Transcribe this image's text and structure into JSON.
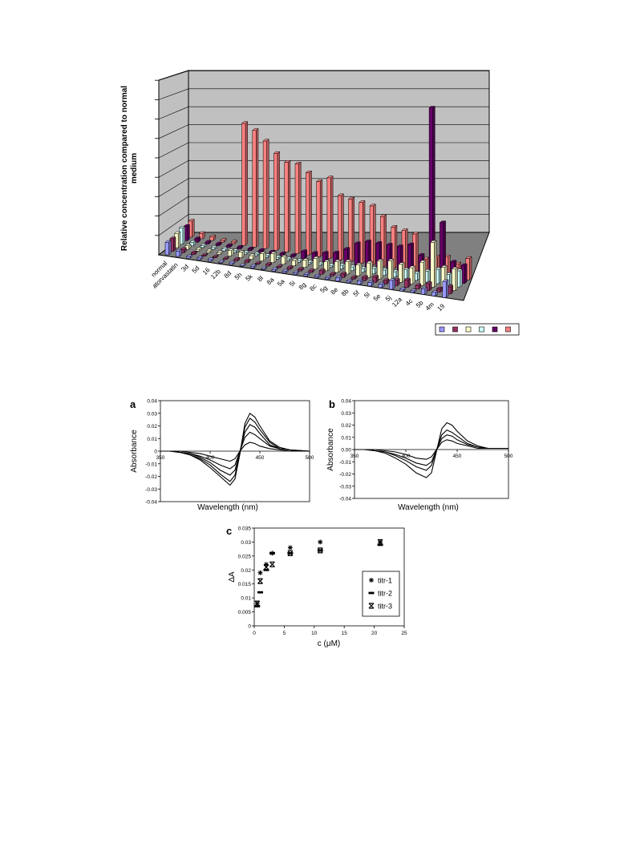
{
  "chart_data": [
    {
      "type": "bar",
      "variant": "3d-clustered",
      "title": "",
      "ylabel": "Relative concentration compared to normal medium",
      "ylabel_lines": [
        "Relative concentration compared to normal",
        "medium"
      ],
      "xlabel": "",
      "grid": true,
      "legend_position": "bottom-right",
      "categories": [
        "normal",
        "atorvastatin",
        "3d",
        "5d",
        "16",
        "12b",
        "8d",
        "5h",
        "5k",
        "8l",
        "8a",
        "5a",
        "5i",
        "8g",
        "8c",
        "5g",
        "8e",
        "8b",
        "5f",
        "5l",
        "5e",
        "5j",
        "12a",
        "4c",
        "5b",
        "4m",
        "19"
      ],
      "series": [
        {
          "color": "#9999ff",
          "values": [
            0.7,
            0.3,
            0.1,
            0.1,
            0.1,
            0.05,
            0.1,
            0.05,
            0.1,
            0.05,
            0.1,
            0.1,
            0.1,
            0.1,
            0.1,
            0.1,
            0.2,
            0.1,
            0.2,
            0.2,
            0.2,
            0.5,
            0.1,
            0.1,
            0.3,
            0.2,
            0.9
          ]
        },
        {
          "color": "#993366",
          "values": [
            0.7,
            0.2,
            0.1,
            0.05,
            0.05,
            0.05,
            0.1,
            0.1,
            0.05,
            0.1,
            0.05,
            0.1,
            0.1,
            0.1,
            0.2,
            0.1,
            0.2,
            0.1,
            0.2,
            0.3,
            0.2,
            0.3,
            0.4,
            0.2,
            0.4,
            0.2,
            0.4
          ]
        },
        {
          "color": "#ffffcc",
          "values": [
            0.8,
            0.2,
            0.1,
            0.1,
            0.1,
            0.3,
            0.3,
            0.2,
            0.4,
            0.5,
            0.4,
            0.3,
            0.4,
            0.6,
            0.5,
            0.6,
            0.7,
            0.6,
            0.8,
            1.0,
            1.1,
            1.0,
            0.9,
            1.3,
            2.5,
            1.2,
            1.2
          ]
        },
        {
          "color": "#ccffff",
          "values": [
            0.9,
            0.2,
            0.1,
            0.1,
            0.1,
            0.1,
            0.1,
            0.1,
            0.1,
            0.1,
            0.1,
            0.1,
            0.1,
            0.1,
            0.1,
            0.2,
            0.2,
            0.2,
            0.3,
            0.3,
            0.3,
            0.5,
            0.4,
            0.6,
            0.8,
            0.6,
            0.9
          ]
        },
        {
          "color": "#660066",
          "values": [
            0.8,
            0.2,
            0.1,
            0.1,
            0.1,
            0.1,
            0.1,
            0.1,
            0.1,
            0.1,
            0.1,
            0.4,
            0.4,
            0.5,
            0.6,
            0.9,
            1.3,
            1.5,
            1.5,
            1.5,
            1.5,
            1.7,
            1.2,
            9.5,
            3.2,
            1.1,
            1.0
          ]
        },
        {
          "color": "#ff8080",
          "values": [
            0.9,
            0.3,
            0.2,
            0.1,
            0.1,
            6.8,
            6.5,
            6.0,
            5.4,
            5.0,
            5.0,
            4.6,
            4.2,
            4.5,
            3.6,
            3.5,
            3.4,
            3.3,
            2.8,
            2.3,
            2.2,
            2.1,
            0.8,
            1.0,
            1.1,
            0.8,
            1.2
          ]
        }
      ]
    },
    {
      "type": "line",
      "panel": "a",
      "xlabel": "Wavelength (nm)",
      "ylabel": "Absorbance",
      "xlim": [
        350,
        500
      ],
      "ylim": [
        -0.04,
        0.04
      ],
      "xticks": [
        "350",
        "400",
        "450",
        "500"
      ],
      "yticks": [
        "0.04",
        "0.03",
        "0.02",
        "0.01",
        "0",
        "-0.01",
        "-0.02",
        "-0.03",
        "-0.04"
      ],
      "color": "#000000",
      "x": [
        350,
        360,
        370,
        380,
        390,
        400,
        410,
        420,
        425,
        430,
        435,
        440,
        445,
        450,
        460,
        470,
        480,
        490,
        500
      ],
      "series": [
        {
          "values": [
            0,
            0,
            -0.001,
            -0.003,
            -0.007,
            -0.013,
            -0.02,
            -0.027,
            -0.022,
            -0.002,
            0.022,
            0.03,
            0.027,
            0.02,
            0.008,
            0.003,
            0.001,
            0.0005,
            0
          ]
        },
        {
          "values": [
            0,
            0,
            -0.001,
            -0.003,
            -0.006,
            -0.011,
            -0.018,
            -0.024,
            -0.019,
            -0.001,
            0.019,
            0.026,
            0.023,
            0.017,
            0.007,
            0.002,
            0.001,
            0.0005,
            0
          ]
        },
        {
          "values": [
            0,
            0,
            -0.001,
            -0.002,
            -0.005,
            -0.009,
            -0.015,
            -0.019,
            -0.015,
            0,
            0.015,
            0.021,
            0.019,
            0.014,
            0.005,
            0.002,
            0.001,
            0,
            0
          ]
        },
        {
          "values": [
            0,
            0,
            -0.001,
            -0.002,
            -0.004,
            -0.007,
            -0.011,
            -0.014,
            -0.011,
            0,
            0.011,
            0.015,
            0.013,
            0.01,
            0.004,
            0.002,
            0.001,
            0,
            0
          ]
        },
        {
          "values": [
            0,
            0,
            0,
            -0.001,
            -0.002,
            -0.004,
            -0.006,
            -0.008,
            -0.006,
            0,
            0.005,
            0.007,
            0.006,
            0.004,
            0.002,
            0.001,
            0,
            0,
            0
          ]
        }
      ]
    },
    {
      "type": "line",
      "panel": "b",
      "xlabel": "Wavelength (nm)",
      "ylabel": "Absorbance",
      "xlim": [
        350,
        500
      ],
      "ylim": [
        -0.04,
        0.04
      ],
      "xticks": [
        "350",
        "400",
        "450",
        "500"
      ],
      "yticks": [
        "0.04",
        "0.03",
        "0.02",
        "0.01",
        "0.00",
        "-0.01",
        "-0.02",
        "-0.03",
        "-0.04"
      ],
      "color": "#000000",
      "x": [
        350,
        360,
        370,
        380,
        390,
        400,
        410,
        420,
        425,
        430,
        435,
        440,
        445,
        450,
        460,
        470,
        480,
        490,
        500
      ],
      "series": [
        {
          "values": [
            0,
            0,
            -0.001,
            -0.003,
            -0.007,
            -0.012,
            -0.019,
            -0.023,
            -0.019,
            -0.001,
            0.017,
            0.022,
            0.02,
            0.015,
            0.007,
            0.003,
            0.001,
            0.001,
            0.001
          ]
        },
        {
          "values": [
            0,
            0,
            -0.001,
            -0.002,
            -0.005,
            -0.009,
            -0.014,
            -0.017,
            -0.013,
            0,
            0.012,
            0.016,
            0.014,
            0.011,
            0.005,
            0.002,
            0.001,
            0.001,
            0.001
          ]
        },
        {
          "values": [
            0,
            0,
            -0.001,
            -0.002,
            -0.004,
            -0.007,
            -0.011,
            -0.013,
            -0.01,
            0,
            0.009,
            0.012,
            0.011,
            0.008,
            0.004,
            0.002,
            0.001,
            0.001,
            0.001
          ]
        },
        {
          "values": [
            0,
            0,
            0,
            -0.001,
            -0.002,
            -0.004,
            -0.007,
            -0.008,
            -0.006,
            0,
            0.006,
            0.008,
            0.007,
            0.005,
            0.003,
            0.001,
            0.001,
            0.001,
            0.001
          ]
        }
      ]
    },
    {
      "type": "scatter",
      "panel": "c",
      "xlabel": "c (μM)",
      "ylabel": "ΔA",
      "xlim": [
        0,
        25
      ],
      "ylim": [
        0,
        0.035
      ],
      "xticks": [
        "0",
        "5",
        "10",
        "15",
        "20",
        "25"
      ],
      "yticks": [
        "0.035",
        "0.03",
        "0.025",
        "0.02",
        "0.015",
        "0.01",
        "0.005",
        "0"
      ],
      "legend_position": "right",
      "series": [
        {
          "name": "titr-1",
          "marker": "star",
          "points": [
            [
              0.5,
              0.008
            ],
            [
              1,
              0.019
            ],
            [
              2,
              0.022
            ],
            [
              3,
              0.026
            ],
            [
              6,
              0.028
            ],
            [
              11,
              0.03
            ],
            [
              21,
              0.03
            ]
          ]
        },
        {
          "name": "titr-2",
          "marker": "dash",
          "points": [
            [
              0.5,
              0.007
            ],
            [
              1,
              0.012
            ],
            [
              2,
              0.02
            ],
            [
              3,
              0.026
            ],
            [
              6,
              0.026
            ],
            [
              11,
              0.027
            ],
            [
              21,
              0.029
            ]
          ]
        },
        {
          "name": "titr-3",
          "marker": "x",
          "points": [
            [
              0.5,
              0.008
            ],
            [
              1,
              0.016
            ],
            [
              2,
              0.021
            ],
            [
              3,
              0.022
            ],
            [
              6,
              0.026
            ],
            [
              11,
              0.027
            ],
            [
              21,
              0.03
            ]
          ]
        }
      ]
    }
  ],
  "panel_labels": {
    "a": "a",
    "b": "b",
    "c": "c"
  }
}
